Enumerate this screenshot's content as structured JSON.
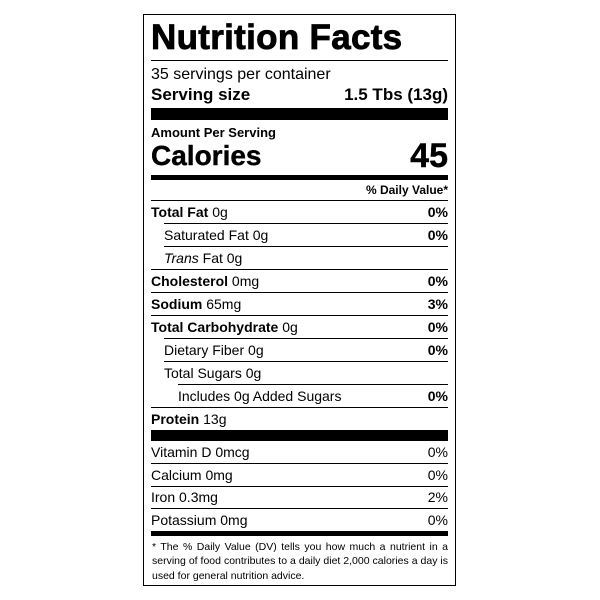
{
  "title": "Nutrition Facts",
  "servings": "35 servings per container",
  "serving_size": {
    "label": "Serving size",
    "value": "1.5 Tbs (13g)"
  },
  "amount_per_serving": "Amount Per Serving",
  "calories": {
    "label": "Calories",
    "value": "45"
  },
  "daily_value_header": "% Daily Value*",
  "nutrients": [
    {
      "name": "Total Fat",
      "amount": "0g",
      "dv": "0%"
    },
    {
      "name": "Saturated Fat",
      "amount": "0g",
      "dv": "0%"
    },
    {
      "name_prefix": "Trans",
      "name": "Fat",
      "amount": "0g"
    },
    {
      "name": "Cholesterol",
      "amount": "0mg",
      "dv": "0%"
    },
    {
      "name": "Sodium",
      "amount": "65mg",
      "dv": "3%"
    },
    {
      "name": "Total Carbohydrate",
      "amount": "0g",
      "dv": "0%"
    },
    {
      "name": "Dietary Fiber",
      "amount": "0g",
      "dv": "0%"
    },
    {
      "name": "Total Sugars",
      "amount": "0g"
    },
    {
      "name": "Includes",
      "amount": "0g Added Sugars",
      "dv": "0%"
    },
    {
      "name": "Protein",
      "amount": "13g"
    }
  ],
  "vitamins": [
    {
      "name": "Vitamin D",
      "amount": "0mcg",
      "dv": "0%"
    },
    {
      "name": "Calcium",
      "amount": "0mg",
      "dv": "0%"
    },
    {
      "name": "Iron",
      "amount": "0.3mg",
      "dv": "2%"
    },
    {
      "name": "Potassium",
      "amount": "0mg",
      "dv": "0%"
    }
  ],
  "footnote": "* The % Daily Value (DV) tells you how much a nutrient in a serving of food contributes to a daily diet 2,000 calories a day is used for general nutrition advice."
}
